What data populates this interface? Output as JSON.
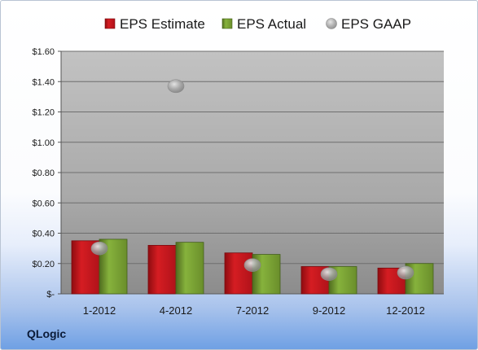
{
  "chart_data": {
    "type": "bar",
    "categories": [
      "1-2012",
      "4-2012",
      "7-2012",
      "9-2012",
      "12-2012"
    ],
    "series": [
      {
        "name": "EPS Estimate",
        "kind": "bar",
        "color": "#c8161c",
        "values": [
          0.35,
          0.32,
          0.27,
          0.18,
          0.17
        ]
      },
      {
        "name": "EPS Actual",
        "kind": "bar",
        "color": "#77a032",
        "values": [
          0.36,
          0.34,
          0.26,
          0.18,
          0.2
        ]
      },
      {
        "name": "EPS GAAP",
        "kind": "scatter",
        "color": "#a8a8a8",
        "values": [
          0.3,
          1.37,
          0.19,
          0.13,
          0.14
        ]
      }
    ],
    "ylim": [
      0,
      1.6
    ],
    "yticks": [
      0,
      0.2,
      0.4,
      0.6,
      0.8,
      1.0,
      1.2,
      1.4,
      1.6
    ],
    "ytick_labels": [
      "$-",
      "$0.20",
      "$0.40",
      "$0.60",
      "$0.80",
      "$1.00",
      "$1.20",
      "$1.40",
      "$1.60"
    ],
    "grid": true,
    "legend_position": "top"
  },
  "brand": "QLogic"
}
